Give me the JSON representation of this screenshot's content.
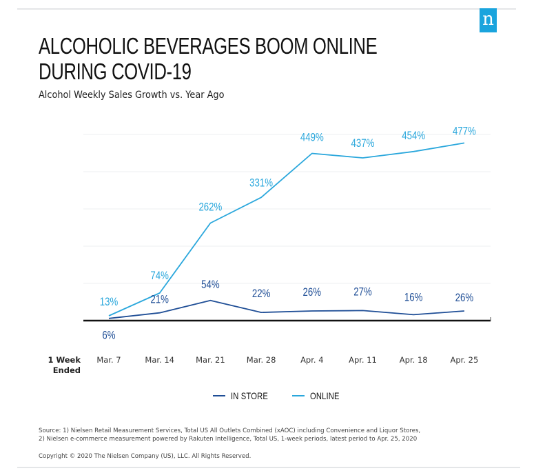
{
  "brand": {
    "logo_letter": "n",
    "logo_color": "#1aa4dd"
  },
  "header": {
    "title_line1": "ALCOHOLIC BEVERAGES BOOM ONLINE",
    "title_line2": "DURING COVID-19",
    "subtitle": "Alcohol Weekly Sales Growth vs. Year Ago"
  },
  "chart_data": {
    "type": "line",
    "title": "Alcohol Weekly Sales Growth vs. Year Ago",
    "xlabel": "1 Week Ended",
    "ylabel": "",
    "categories": [
      "Mar. 7",
      "Mar. 14",
      "Mar. 21",
      "Mar. 28",
      "Apr. 4",
      "Apr. 11",
      "Apr. 18",
      "Apr. 25"
    ],
    "series": [
      {
        "name": "IN STORE",
        "color": "#1f4e96",
        "values": [
          6,
          21,
          54,
          22,
          26,
          27,
          16,
          26
        ],
        "labels": [
          "6%",
          "21%",
          "54%",
          "22%",
          "26%",
          "27%",
          "16%",
          "26%"
        ]
      },
      {
        "name": "ONLINE",
        "color": "#2aa7dc",
        "values": [
          13,
          74,
          262,
          331,
          449,
          437,
          454,
          477
        ],
        "labels": [
          "13%",
          "74%",
          "262%",
          "331%",
          "449%",
          "437%",
          "454%",
          "477%"
        ]
      }
    ],
    "ylim": [
      0,
      500
    ],
    "gridlines": [
      100,
      200,
      300,
      400,
      500
    ],
    "grid": true,
    "y_axis_ticks_visible": false,
    "legend": {
      "placement": "bottom-center",
      "entries": [
        "IN STORE",
        "ONLINE"
      ]
    }
  },
  "axis": {
    "week_label_line1": "1 Week",
    "week_label_line2": "Ended"
  },
  "footer": {
    "source_line1": "Source: 1) Nielsen Retail Measurement Services, Total US All Outlets Combined (xAOC) including Convenience and Liquor Stores,",
    "source_line2": "2) Nielsen e-commerce measurement powered by Rakuten Intelligence, Total US, 1-week periods, latest period to Apr. 25, 2020",
    "copyright": "Copyright © 2020 The Nielsen Company (US), LLC. All Rights Reserved."
  }
}
